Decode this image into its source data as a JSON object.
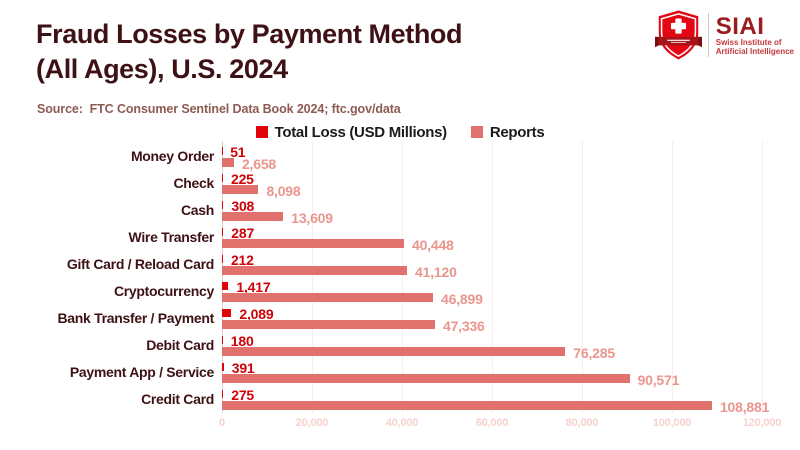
{
  "header": {
    "title_line1": "Fraud Losses by Payment Method",
    "title_line2": "(All Ages), U.S. 2024",
    "source": "Source:  FTC Consumer Sentinel Data Book 2024; ftc.gov/data"
  },
  "logo": {
    "acronym": "SIAI",
    "name_line1": "Swiss Institute of",
    "name_line2": "Artificial Intelligence"
  },
  "legend": [
    {
      "label": "Total Loss (USD Millions)",
      "color": "#e00308"
    },
    {
      "label": "Reports",
      "color": "#e0716c"
    }
  ],
  "chart_data": {
    "type": "bar",
    "orientation": "horizontal",
    "title": "Fraud Losses by Payment Method (All Ages), U.S. 2024",
    "categories": [
      "Money Order",
      "Check",
      "Cash",
      "Wire Transfer",
      "Gift Card / Reload Card",
      "Cryptocurrency",
      "Bank Transfer / Payment",
      "Debit Card",
      "Payment App / Service",
      "Credit Card"
    ],
    "series": [
      {
        "name": "Total Loss (USD Millions)",
        "values": [
          51,
          225,
          308,
          287,
          212,
          1417,
          2089,
          180,
          391,
          275
        ],
        "bar_color": "#e00308",
        "label_color": "#cf0208"
      },
      {
        "name": "Reports",
        "values": [
          2658,
          8098,
          13609,
          40448,
          41120,
          46899,
          47336,
          76285,
          90571,
          108881
        ],
        "bar_color": "#e0716c",
        "label_color": "#ea958e"
      }
    ],
    "xlim": [
      0,
      120000
    ],
    "x_ticks": [
      0,
      20000,
      40000,
      60000,
      80000,
      100000,
      120000
    ],
    "x_tick_labels": [
      "0",
      "20,000",
      "40,000",
      "60,000",
      "80,000",
      "100,000",
      "120,000"
    ],
    "grid": true,
    "legend_position": "top-center",
    "value_labels": "outside-end"
  },
  "colors": {
    "title": "#3d1115",
    "source": "#8e5a52",
    "category_label": "#3d1115",
    "legend_text": "#1b1b1b",
    "gridline": "#fcebe9",
    "axis_line": "#d9cfcd",
    "tick_label": "#f6d2cd",
    "logo_acronym": "#9c1b1f",
    "logo_sub": "#c4393c",
    "logo_shield": "#e30613",
    "logo_ribbon": "#a61419"
  }
}
